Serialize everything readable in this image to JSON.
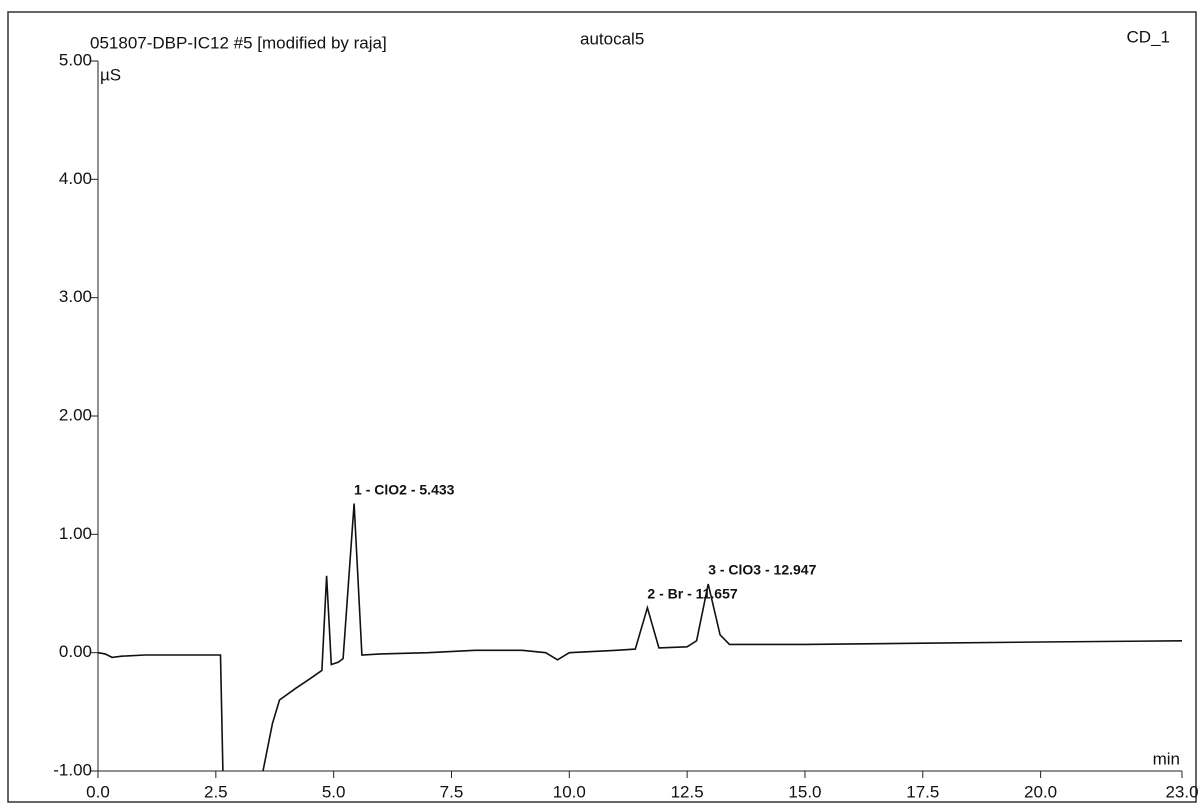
{
  "chart_data": {
    "type": "line",
    "title": "051807-DBP-IC12 #5 [modified by raja]",
    "subtitle": "autocal5",
    "channel": "CD_1",
    "y_label": "µS",
    "x_label": "min",
    "x": [
      0.0,
      0.15,
      0.3,
      0.5,
      1.0,
      2.0,
      2.6,
      2.65,
      3.0,
      3.5,
      3.6,
      3.7,
      3.85,
      4.2,
      4.5,
      4.75,
      4.85,
      4.95,
      5.1,
      5.2,
      5.433,
      5.6,
      6.0,
      7.0,
      8.0,
      9.0,
      9.5,
      9.75,
      10.0,
      11.0,
      11.4,
      11.657,
      11.9,
      12.5,
      12.7,
      12.947,
      13.2,
      13.4,
      15.0,
      17.5,
      20.0,
      23.0
    ],
    "series": [
      {
        "name": "CD_1",
        "color": "#111111",
        "values": [
          0.0,
          -0.01,
          -0.04,
          -0.03,
          -0.02,
          -0.02,
          -0.02,
          -1.0,
          null,
          -1.0,
          -0.8,
          -0.6,
          -0.4,
          -0.3,
          -0.22,
          -0.15,
          0.65,
          -0.1,
          -0.08,
          -0.05,
          1.26,
          -0.02,
          -0.01,
          0.0,
          0.02,
          0.02,
          0.0,
          -0.06,
          0.0,
          0.02,
          0.03,
          0.38,
          0.04,
          0.05,
          0.1,
          0.58,
          0.15,
          0.07,
          0.07,
          0.08,
          0.09,
          0.1
        ]
      }
    ],
    "annotations": [
      {
        "text": "1 - ClO2 - 5.433",
        "x": 5.433,
        "y": 1.26
      },
      {
        "text": "2 - Br - 11.657",
        "x": 11.657,
        "y": 0.38
      },
      {
        "text": "3 - ClO3 - 12.947",
        "x": 12.947,
        "y": 0.58
      }
    ],
    "xlim": [
      0.0,
      23.0
    ],
    "ylim": [
      -1.0,
      5.0
    ],
    "xticks": [
      {
        "value": 0,
        "label": "0.0"
      },
      {
        "value": 2.5,
        "label": "2.5"
      },
      {
        "value": 5,
        "label": "5.0"
      },
      {
        "value": 7.5,
        "label": "7.5"
      },
      {
        "value": 10,
        "label": "10.0"
      },
      {
        "value": 12.5,
        "label": "12.5"
      },
      {
        "value": 15,
        "label": "15.0"
      },
      {
        "value": 17.5,
        "label": "17.5"
      },
      {
        "value": 20,
        "label": "20.0"
      },
      {
        "value": 23,
        "label": "23.0"
      }
    ],
    "yticks": [
      {
        "value": -1,
        "label": "-1.00"
      },
      {
        "value": 0,
        "label": "0.00"
      },
      {
        "value": 1,
        "label": "1.00"
      },
      {
        "value": 2,
        "label": "2.00"
      },
      {
        "value": 3,
        "label": "3.00"
      },
      {
        "value": 4,
        "label": "4.00"
      },
      {
        "value": 5,
        "label": "5.00"
      }
    ]
  }
}
